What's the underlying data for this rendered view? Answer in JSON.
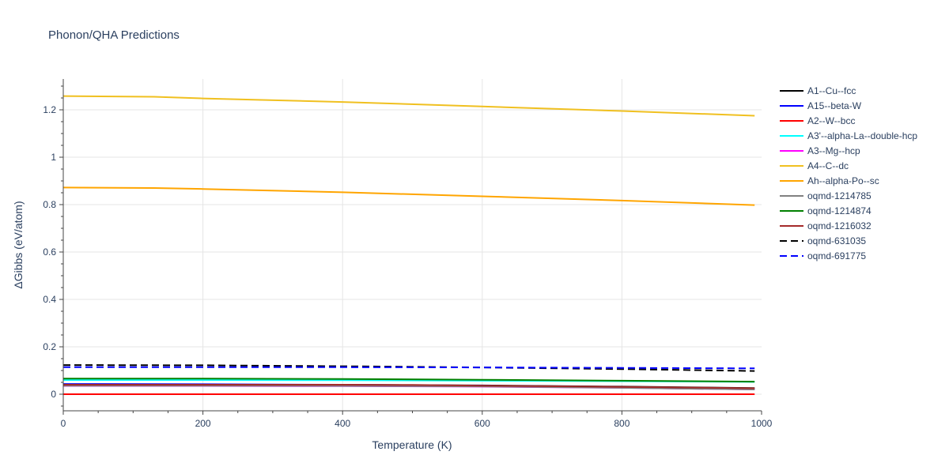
{
  "title": "Phonon/QHA Predictions",
  "chart_data": {
    "type": "line",
    "title": "Phonon/QHA Predictions",
    "xlabel": "Temperature (K)",
    "ylabel": "ΔGibbs (eV/atom)",
    "xlim": [
      0,
      1000
    ],
    "ylim": [
      -0.07,
      1.33
    ],
    "x_ticks": [
      0,
      200,
      400,
      600,
      800,
      1000
    ],
    "x_tick_labels": [
      "0",
      "200",
      "400",
      "600",
      "800",
      "1000"
    ],
    "y_ticks": [
      0,
      0.2,
      0.4,
      0.6,
      0.8,
      1,
      1.2
    ],
    "y_tick_labels": [
      "0",
      "0.2",
      "0.4",
      "0.6",
      "0.8",
      "1",
      "1.2"
    ],
    "grid": true,
    "legend_position": "right",
    "series": [
      {
        "name": "A1--Cu--fcc",
        "color": "#000000",
        "dash": "solid",
        "x": [
          0,
          200,
          400,
          600,
          800,
          990
        ],
        "y": [
          0.04,
          0.04,
          0.039,
          0.037,
          0.032,
          0.026
        ]
      },
      {
        "name": "A15--beta-W",
        "color": "#0000ff",
        "dash": "solid",
        "x": [
          0,
          200,
          400,
          600,
          800,
          990
        ],
        "y": [
          0.043,
          0.042,
          0.04,
          0.036,
          0.03,
          0.022
        ]
      },
      {
        "name": "A2--W--bcc",
        "color": "#ff0000",
        "dash": "solid",
        "x": [
          0,
          200,
          400,
          600,
          800,
          990
        ],
        "y": [
          0.0,
          0.0,
          0.0,
          0.0,
          0.0,
          0.0
        ]
      },
      {
        "name": "A3'--alpha-La--double-hcp",
        "color": "#00ffff",
        "dash": "solid",
        "x": [
          0,
          200,
          400,
          600,
          800,
          990
        ],
        "y": [
          0.06,
          0.06,
          0.059,
          0.057,
          0.055,
          0.052
        ]
      },
      {
        "name": "A3--Mg--hcp",
        "color": "#ff00ff",
        "dash": "solid",
        "x": [
          0,
          200,
          400,
          600,
          800,
          990
        ],
        "y": [
          0.035,
          0.035,
          0.034,
          0.032,
          0.027,
          0.02
        ]
      },
      {
        "name": "A4--C--dc",
        "color": "#f0c020",
        "dash": "solid",
        "x": [
          0,
          130,
          200,
          400,
          600,
          800,
          990
        ],
        "y": [
          1.258,
          1.255,
          1.248,
          1.233,
          1.214,
          1.195,
          1.175
        ]
      },
      {
        "name": "Ah--alpha-Po--sc",
        "color": "#ffa500",
        "dash": "solid",
        "x": [
          0,
          130,
          200,
          400,
          600,
          800,
          990
        ],
        "y": [
          0.872,
          0.87,
          0.866,
          0.852,
          0.835,
          0.817,
          0.798
        ]
      },
      {
        "name": "oqmd-1214785",
        "color": "#808080",
        "dash": "solid",
        "x": [
          0,
          200,
          400,
          600,
          800,
          990
        ],
        "y": [
          0.036,
          0.036,
          0.035,
          0.033,
          0.027,
          0.02
        ]
      },
      {
        "name": "oqmd-1214874",
        "color": "#008000",
        "dash": "solid",
        "x": [
          0,
          200,
          400,
          600,
          800,
          990
        ],
        "y": [
          0.066,
          0.066,
          0.064,
          0.061,
          0.057,
          0.053
        ]
      },
      {
        "name": "oqmd-1216032",
        "color": "#a52a2a",
        "dash": "solid",
        "x": [
          0,
          200,
          400,
          500,
          600,
          800,
          990
        ],
        "y": [
          0.04,
          0.04,
          0.04,
          0.039,
          0.036,
          0.031,
          0.025
        ]
      },
      {
        "name": "oqmd-631035",
        "color": "#000000",
        "dash": "dash",
        "x": [
          0,
          200,
          400,
          600,
          800,
          990
        ],
        "y": [
          0.123,
          0.122,
          0.118,
          0.113,
          0.106,
          0.098
        ]
      },
      {
        "name": "oqmd-691775",
        "color": "#0000ff",
        "dash": "dash",
        "x": [
          0,
          200,
          400,
          600,
          800,
          990
        ],
        "y": [
          0.114,
          0.114,
          0.114,
          0.113,
          0.111,
          0.109
        ]
      }
    ]
  }
}
